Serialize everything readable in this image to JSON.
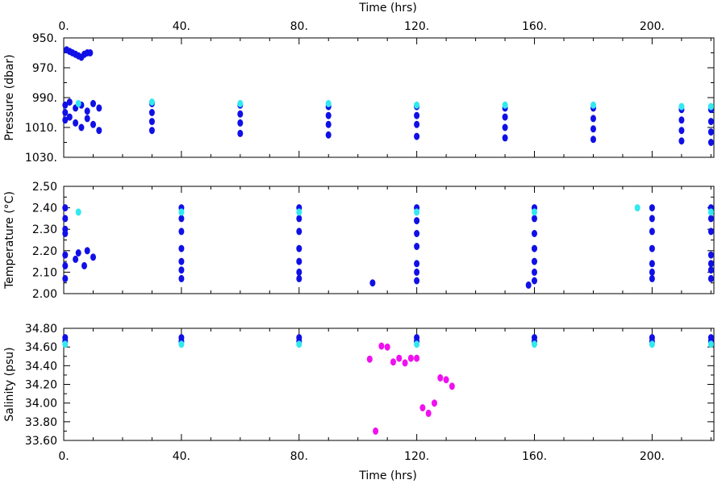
{
  "x_axis": {
    "title_top": "Time (hrs)",
    "title_bottom": "Time (hrs)",
    "range": [
      0,
      221
    ],
    "ticks": [
      0,
      40,
      80,
      120,
      160,
      200
    ],
    "tick_labels": [
      "0.",
      "40.",
      "80.",
      "120.",
      "160.",
      "200."
    ]
  },
  "colors": {
    "series_main": "#1010e6",
    "series_highlight": "#33e8f0",
    "series_flagged": "#f010f0",
    "axes": "#000000"
  },
  "chart_data": [
    {
      "type": "scatter",
      "title": "",
      "xlabel": "Time (hrs)",
      "ylabel": "Pressure (dbar)",
      "xlim": [
        0,
        221
      ],
      "ylim": [
        950,
        1030
      ],
      "y_inverted": true,
      "yticks": [
        950,
        970,
        990,
        1010,
        1030
      ],
      "ytick_labels": [
        "950.",
        "970.",
        "990.",
        "1010.",
        "1030."
      ],
      "grid": false,
      "series": [
        {
          "color_key": "series_main",
          "points": [
            [
              1,
              958
            ],
            [
              2,
              959
            ],
            [
              3,
              960
            ],
            [
              4,
              961
            ],
            [
              5,
              962
            ],
            [
              6,
              963
            ],
            [
              7,
              961
            ],
            [
              8,
              960
            ],
            [
              9,
              960
            ],
            [
              0.5,
              995
            ],
            [
              0.5,
              1000
            ],
            [
              0.5,
              1005
            ],
            [
              2,
              993
            ],
            [
              2,
              1003
            ],
            [
              4,
              997
            ],
            [
              4,
              1007
            ],
            [
              6,
              995
            ],
            [
              6,
              1010
            ],
            [
              8,
              999
            ],
            [
              8,
              1004
            ],
            [
              10,
              994
            ],
            [
              10,
              1008
            ],
            [
              12,
              997
            ],
            [
              12,
              1012
            ],
            [
              30,
              994
            ],
            [
              30,
              1000
            ],
            [
              30,
              1006
            ],
            [
              30,
              1012
            ],
            [
              60,
              995
            ],
            [
              60,
              1001
            ],
            [
              60,
              1007
            ],
            [
              60,
              1014
            ],
            [
              90,
              996
            ],
            [
              90,
              1002
            ],
            [
              90,
              1008
            ],
            [
              90,
              1015
            ],
            [
              120,
              996
            ],
            [
              120,
              1002
            ],
            [
              120,
              1008
            ],
            [
              120,
              1016
            ],
            [
              150,
              997
            ],
            [
              150,
              1003
            ],
            [
              150,
              1010
            ],
            [
              150,
              1017
            ],
            [
              180,
              997
            ],
            [
              180,
              1004
            ],
            [
              180,
              1011
            ],
            [
              180,
              1018
            ],
            [
              210,
              998
            ],
            [
              210,
              1005
            ],
            [
              210,
              1012
            ],
            [
              210,
              1019
            ],
            [
              220,
              998
            ],
            [
              220,
              1006
            ],
            [
              220,
              1013
            ],
            [
              220,
              1020
            ]
          ]
        },
        {
          "color_key": "series_highlight",
          "points": [
            [
              5,
              994
            ],
            [
              30,
              993
            ],
            [
              60,
              994
            ],
            [
              90,
              994
            ],
            [
              120,
              995
            ],
            [
              150,
              995
            ],
            [
              180,
              995
            ],
            [
              210,
              996
            ],
            [
              220,
              996
            ]
          ]
        }
      ]
    },
    {
      "type": "scatter",
      "title": "",
      "xlabel": "",
      "ylabel": "Temperature (°C)",
      "xlim": [
        0,
        221
      ],
      "ylim": [
        2.0,
        2.5
      ],
      "yticks": [
        2.0,
        2.1,
        2.2,
        2.3,
        2.4,
        2.5
      ],
      "ytick_labels": [
        "2.00",
        "2.10",
        "2.20",
        "2.30",
        "2.40",
        "2.50"
      ],
      "grid": false,
      "series": [
        {
          "color_key": "series_main",
          "points": [
            [
              0.5,
              2.4
            ],
            [
              0.5,
              2.35
            ],
            [
              0.5,
              2.3
            ],
            [
              0.5,
              2.28
            ],
            [
              0.5,
              2.18
            ],
            [
              0.5,
              2.13
            ],
            [
              0.5,
              2.07
            ],
            [
              5,
              2.19
            ],
            [
              8,
              2.2
            ],
            [
              10,
              2.17
            ],
            [
              4,
              2.16
            ],
            [
              7,
              2.13
            ],
            [
              40,
              2.4
            ],
            [
              40,
              2.35
            ],
            [
              40,
              2.29
            ],
            [
              40,
              2.21
            ],
            [
              40,
              2.15
            ],
            [
              40,
              2.11
            ],
            [
              40,
              2.07
            ],
            [
              80,
              2.4
            ],
            [
              80,
              2.35
            ],
            [
              80,
              2.29
            ],
            [
              80,
              2.21
            ],
            [
              80,
              2.15
            ],
            [
              80,
              2.1
            ],
            [
              80,
              2.07
            ],
            [
              120,
              2.4
            ],
            [
              120,
              2.34
            ],
            [
              120,
              2.28
            ],
            [
              120,
              2.22
            ],
            [
              120,
              2.14
            ],
            [
              120,
              2.1
            ],
            [
              120,
              2.06
            ],
            [
              160,
              2.4
            ],
            [
              160,
              2.35
            ],
            [
              160,
              2.28
            ],
            [
              160,
              2.21
            ],
            [
              160,
              2.15
            ],
            [
              160,
              2.1
            ],
            [
              160,
              2.06
            ],
            [
              200,
              2.4
            ],
            [
              200,
              2.35
            ],
            [
              200,
              2.29
            ],
            [
              200,
              2.21
            ],
            [
              200,
              2.14
            ],
            [
              200,
              2.1
            ],
            [
              200,
              2.07
            ],
            [
              220,
              2.4
            ],
            [
              220,
              2.35
            ],
            [
              220,
              2.29
            ],
            [
              220,
              2.18
            ],
            [
              220,
              2.14
            ],
            [
              220,
              2.11
            ],
            [
              220,
              2.07
            ],
            [
              105,
              2.05
            ],
            [
              158,
              2.04
            ]
          ]
        },
        {
          "color_key": "series_highlight",
          "points": [
            [
              5,
              2.38
            ],
            [
              40,
              2.38
            ],
            [
              80,
              2.38
            ],
            [
              120,
              2.38
            ],
            [
              160,
              2.38
            ],
            [
              195,
              2.4
            ],
            [
              220,
              2.38
            ]
          ]
        }
      ]
    },
    {
      "type": "scatter",
      "title": "",
      "xlabel": "Time (hrs)",
      "ylabel": "Salinity (psu)",
      "xlim": [
        0,
        221
      ],
      "ylim": [
        33.6,
        34.8
      ],
      "yticks": [
        33.6,
        33.8,
        34.0,
        34.2,
        34.4,
        34.6,
        34.8
      ],
      "ytick_labels": [
        "33.60",
        "33.80",
        "34.00",
        "34.20",
        "34.40",
        "34.60",
        "34.80"
      ],
      "grid": false,
      "series": [
        {
          "color_key": "series_main",
          "points": [
            [
              0.5,
              34.7
            ],
            [
              0.5,
              34.66
            ],
            [
              40,
              34.7
            ],
            [
              40,
              34.66
            ],
            [
              80,
              34.7
            ],
            [
              80,
              34.66
            ],
            [
              120,
              34.7
            ],
            [
              120,
              34.66
            ],
            [
              160,
              34.7
            ],
            [
              160,
              34.66
            ],
            [
              200,
              34.7
            ],
            [
              200,
              34.66
            ],
            [
              220,
              34.7
            ],
            [
              220,
              34.66
            ]
          ]
        },
        {
          "color_key": "series_highlight",
          "points": [
            [
              0.5,
              34.63
            ],
            [
              40,
              34.63
            ],
            [
              80,
              34.63
            ],
            [
              120,
              34.63
            ],
            [
              160,
              34.63
            ],
            [
              200,
              34.63
            ],
            [
              220,
              34.63
            ]
          ]
        },
        {
          "color_key": "series_flagged",
          "points": [
            [
              104,
              34.47
            ],
            [
              106,
              33.7
            ],
            [
              108,
              34.61
            ],
            [
              110,
              34.6
            ],
            [
              112,
              34.44
            ],
            [
              114,
              34.48
            ],
            [
              116,
              34.43
            ],
            [
              118,
              34.48
            ],
            [
              120,
              34.48
            ],
            [
              122,
              33.95
            ],
            [
              124,
              33.89
            ],
            [
              126,
              34.0
            ],
            [
              128,
              34.27
            ],
            [
              130,
              34.25
            ],
            [
              132,
              34.18
            ]
          ]
        }
      ]
    }
  ]
}
